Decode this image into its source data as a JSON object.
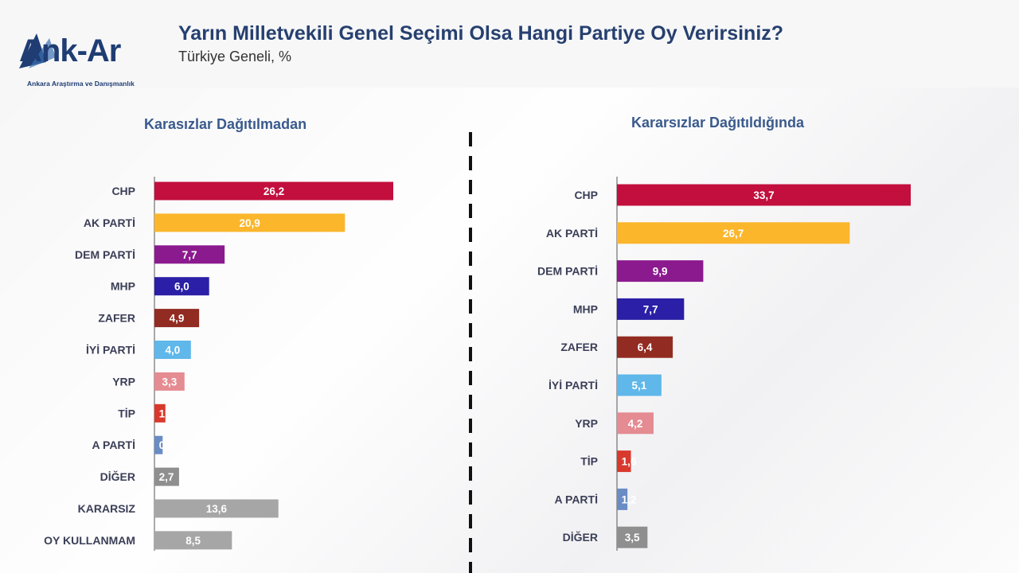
{
  "header": {
    "logo_text": "Ank-Ar",
    "logo_sub": "Ankara Araştırma ve Danışmanlık",
    "title": "Yarın Milletvekili Genel Seçimi Olsa Hangi Partiye Oy Verirsiniz?",
    "subtitle": "Türkiye Geneli, %"
  },
  "chart_data": [
    {
      "type": "bar",
      "orientation": "horizontal",
      "title": "Karasızlar Dağıtılmadan",
      "categories": [
        "CHP",
        "AK PARTİ",
        "DEM PARTİ",
        "MHP",
        "ZAFER",
        "İYİ PARTİ",
        "YRP",
        "TİP",
        "A PARTİ",
        "DİĞER",
        "KARARSIZ",
        "OY KULLANMAM"
      ],
      "values": [
        26.2,
        20.9,
        7.7,
        6.0,
        4.9,
        4.0,
        3.3,
        1.2,
        0.9,
        2.7,
        13.6,
        8.5
      ],
      "value_labels": [
        "26,2",
        "20,9",
        "7,7",
        "6,0",
        "4,9",
        "4,0",
        "3,3",
        "1,2",
        "0,9",
        "2,7",
        "13,6",
        "8,5"
      ],
      "colors": [
        "#c20f3e",
        "#fbb62c",
        "#8b1a8e",
        "#2a1fa6",
        "#922b21",
        "#5fb7ea",
        "#e58b92",
        "#d8392c",
        "#6a8cc4",
        "#8f8f8f",
        "#a6a6a6",
        "#a6a6a6"
      ]
    },
    {
      "type": "bar",
      "orientation": "horizontal",
      "title": "Kararsızlar Dağıtıldığında",
      "categories": [
        "CHP",
        "AK PARTİ",
        "DEM PARTİ",
        "MHP",
        "ZAFER",
        "İYİ PARTİ",
        "YRP",
        "TİP",
        "A PARTİ",
        "DİĞER"
      ],
      "values": [
        33.7,
        26.7,
        9.9,
        7.7,
        6.4,
        5.1,
        4.2,
        1.6,
        1.2,
        3.5
      ],
      "value_labels": [
        "33,7",
        "26,7",
        "9,9",
        "7,7",
        "6,4",
        "5,1",
        "4,2",
        "1,6",
        "1,2",
        "3,5"
      ],
      "colors": [
        "#c20f3e",
        "#fbb62c",
        "#8b1a8e",
        "#2a1fa6",
        "#922b21",
        "#5fb7ea",
        "#e58b92",
        "#d8392c",
        "#6a8cc4",
        "#8f8f8f"
      ]
    }
  ]
}
